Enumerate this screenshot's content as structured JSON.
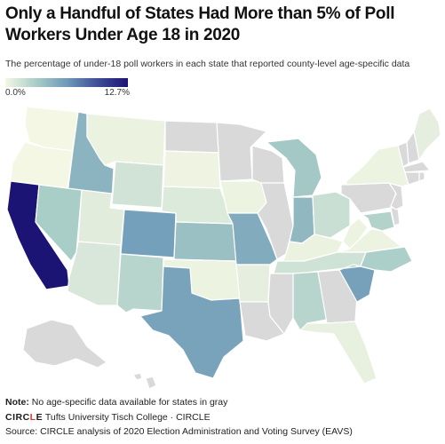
{
  "title": "Only a Handful of States Had More than 5% of Poll Workers Under Age 18 in 2020",
  "subtitle": "The percentage of under-18 poll workers in each state that reported county-level age-specific data",
  "legend": {
    "min_label": "0.0%",
    "max_label": "12.7%",
    "min_value": 0.0,
    "max_value": 12.7
  },
  "colors": {
    "no_data": "#d9d9d9",
    "scale_low": "#f4f7e4",
    "scale_high": "#1c1475"
  },
  "note": {
    "label": "Note:",
    "text": " No age-specific data available for states in gray"
  },
  "credit": {
    "logo_prefix": "CIRC",
    "logo_highlight": "L",
    "logo_suffix": "E",
    "text": " Tufts University Tisch College · CIRCLE"
  },
  "source": "Source: CIRCLE analysis of 2020 Election Administration and Voting Survey (EAVS)",
  "chart_data": {
    "type": "choropleth",
    "color_scale": {
      "min": 0.0,
      "max": 12.7
    },
    "states": [
      {
        "id": "CA",
        "value": 12.7
      },
      {
        "id": "CO",
        "value": 6.0
      },
      {
        "id": "TX",
        "value": 5.8
      },
      {
        "id": "SC",
        "value": 5.9
      },
      {
        "id": "MO",
        "value": 5.3
      },
      {
        "id": "ID",
        "value": 4.8
      },
      {
        "id": "IN",
        "value": 4.5
      },
      {
        "id": "KS",
        "value": 4.0
      },
      {
        "id": "MI",
        "value": 3.5
      },
      {
        "id": "NV",
        "value": 3.2
      },
      {
        "id": "NC",
        "value": 3.0
      },
      {
        "id": "NM",
        "value": 2.6
      },
      {
        "id": "AL",
        "value": 2.6
      },
      {
        "id": "MD",
        "value": 2.8
      },
      {
        "id": "OH",
        "value": 1.8
      },
      {
        "id": "TN",
        "value": 1.6
      },
      {
        "id": "WY",
        "value": 1.5
      },
      {
        "id": "AZ",
        "value": 1.2
      },
      {
        "id": "NE",
        "value": 1.0
      },
      {
        "id": "UT",
        "value": 0.8
      },
      {
        "id": "WA",
        "value": 0.0
      },
      {
        "id": "OR",
        "value": 0.0
      },
      {
        "id": "MT",
        "value": 0.4
      },
      {
        "id": "SD",
        "value": 0.2
      },
      {
        "id": "IA",
        "value": 0.3
      },
      {
        "id": "OK",
        "value": 0.3
      },
      {
        "id": "AR",
        "value": 0.6
      },
      {
        "id": "KY",
        "value": 0.4
      },
      {
        "id": "WV",
        "value": 0.3
      },
      {
        "id": "NY",
        "value": 0.3
      },
      {
        "id": "FL",
        "value": 0.5
      },
      {
        "id": "ME",
        "value": 0.6
      },
      {
        "id": "VA",
        "value": 0.3
      },
      {
        "id": "ND",
        "value": null
      },
      {
        "id": "MN",
        "value": null
      },
      {
        "id": "WI",
        "value": null
      },
      {
        "id": "IL",
        "value": null
      },
      {
        "id": "PA",
        "value": null
      },
      {
        "id": "GA",
        "value": null
      },
      {
        "id": "MS",
        "value": null
      },
      {
        "id": "LA",
        "value": null
      },
      {
        "id": "VT",
        "value": null
      },
      {
        "id": "NH",
        "value": null
      },
      {
        "id": "MA",
        "value": null
      },
      {
        "id": "CT",
        "value": null
      },
      {
        "id": "RI",
        "value": null
      },
      {
        "id": "NJ",
        "value": null
      },
      {
        "id": "DE",
        "value": null
      },
      {
        "id": "AK",
        "value": null
      },
      {
        "id": "HI",
        "value": null
      }
    ]
  }
}
